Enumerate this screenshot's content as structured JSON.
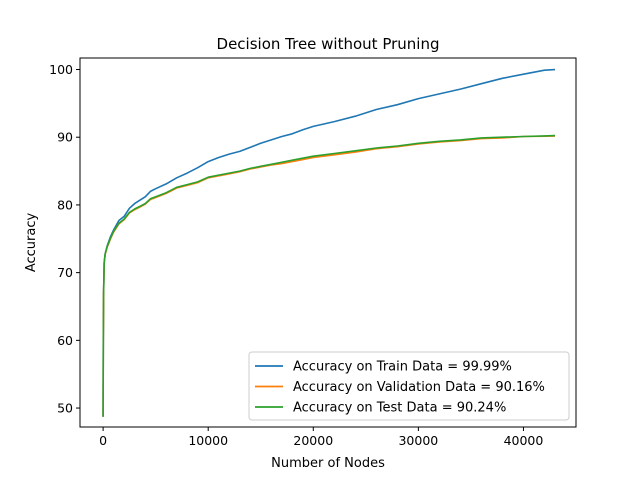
{
  "chart_data": {
    "type": "line",
    "title": "Decision Tree without Pruning",
    "xlabel": "Number of Nodes",
    "ylabel": "Accuracy",
    "xlim": [
      -2200,
      45000
    ],
    "ylim": [
      47.2,
      101.7
    ],
    "xticks": [
      0,
      10000,
      20000,
      30000,
      40000
    ],
    "yticks": [
      50,
      60,
      70,
      80,
      90,
      100
    ],
    "grid": false,
    "legend_position": "lower-right",
    "series": [
      {
        "name": "Accuracy on Train Data = 99.99%",
        "color": "#1f77b4",
        "x": [
          0,
          20,
          50,
          100,
          200,
          400,
          700,
          1000,
          1500,
          2000,
          2500,
          3000,
          3500,
          4000,
          4500,
          5000,
          6000,
          7000,
          8000,
          9000,
          10000,
          11000,
          12000,
          13000,
          14000,
          15000,
          16000,
          17000,
          18000,
          19000,
          20000,
          22000,
          24000,
          26000,
          28000,
          30000,
          32000,
          34000,
          36000,
          38000,
          40000,
          42000,
          43000
        ],
        "y": [
          48.7,
          60,
          67,
          71.5,
          72.8,
          74,
          75.3,
          76.3,
          77.7,
          78.3,
          79.5,
          80.2,
          80.7,
          81.2,
          82,
          82.4,
          83.1,
          84,
          84.7,
          85.5,
          86.4,
          87,
          87.5,
          87.9,
          88.5,
          89.1,
          89.6,
          90.1,
          90.5,
          91.1,
          91.6,
          92.3,
          93.1,
          94.1,
          94.8,
          95.7,
          96.4,
          97.1,
          97.9,
          98.7,
          99.3,
          99.9,
          99.99
        ]
      },
      {
        "name": "Accuracy on Validation Data = 90.16%",
        "color": "#ff7f0e",
        "x": [
          0,
          20,
          50,
          100,
          200,
          400,
          700,
          1000,
          1500,
          2000,
          2500,
          3000,
          3500,
          4000,
          4500,
          5000,
          6000,
          7000,
          8000,
          9000,
          10000,
          11000,
          12000,
          13000,
          14000,
          15000,
          16000,
          17000,
          18000,
          19000,
          20000,
          22000,
          24000,
          26000,
          28000,
          30000,
          32000,
          34000,
          36000,
          38000,
          40000,
          42000,
          43000
        ],
        "y": [
          48.7,
          60,
          67,
          71.5,
          72.7,
          73.8,
          75,
          76,
          77.2,
          77.8,
          78.8,
          79.3,
          79.7,
          80.1,
          80.8,
          81.1,
          81.7,
          82.5,
          82.9,
          83.3,
          84,
          84.3,
          84.6,
          84.9,
          85.3,
          85.6,
          85.9,
          86.1,
          86.4,
          86.7,
          87,
          87.4,
          87.8,
          88.3,
          88.6,
          89,
          89.3,
          89.5,
          89.8,
          89.9,
          90.1,
          90.15,
          90.16
        ]
      },
      {
        "name": "Accuracy on Test Data = 90.24%",
        "color": "#2ca02c",
        "x": [
          0,
          20,
          50,
          100,
          200,
          400,
          700,
          1000,
          1500,
          2000,
          2500,
          3000,
          3500,
          4000,
          4500,
          5000,
          6000,
          7000,
          8000,
          9000,
          10000,
          11000,
          12000,
          13000,
          14000,
          15000,
          16000,
          17000,
          18000,
          19000,
          20000,
          22000,
          24000,
          26000,
          28000,
          30000,
          32000,
          34000,
          36000,
          38000,
          40000,
          42000,
          43000
        ],
        "y": [
          48.7,
          60,
          67,
          71.5,
          72.8,
          73.9,
          75.1,
          76.1,
          77.3,
          77.9,
          78.9,
          79.4,
          79.8,
          80.2,
          80.9,
          81.2,
          81.8,
          82.6,
          83,
          83.4,
          84.1,
          84.4,
          84.7,
          85,
          85.4,
          85.7,
          86,
          86.3,
          86.6,
          86.9,
          87.2,
          87.6,
          88,
          88.4,
          88.7,
          89.1,
          89.4,
          89.6,
          89.9,
          90,
          90.1,
          90.2,
          90.24
        ]
      }
    ]
  }
}
